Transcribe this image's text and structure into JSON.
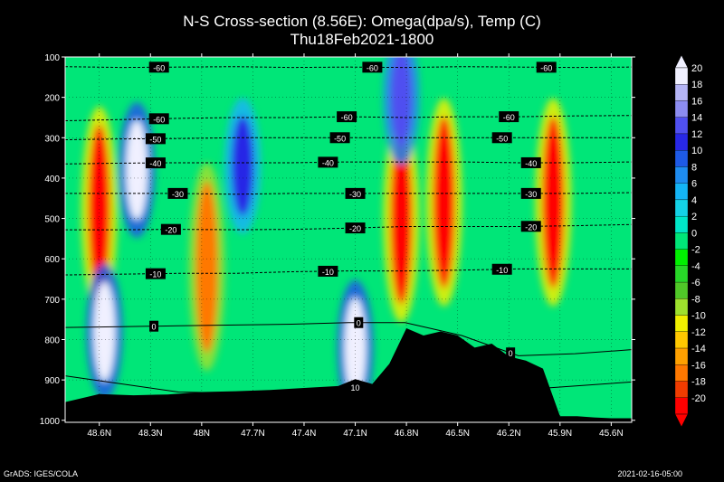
{
  "title_line1": "N-S Cross-section (8.56E): Omega(dpa/s), Temp (C)",
  "title_line2": "Thu18Feb2021-1800",
  "footer_left": "GrADS: IGES/COLA",
  "footer_right": "2021-02-16-05:00",
  "chart_data": {
    "type": "heatmap",
    "title": "N-S Cross-section (8.56E): Omega(dpa/s), Temp (C)",
    "subtitle": "Thu18Feb2021-1800",
    "xlabel": "",
    "ylabel": "",
    "x_ticks": [
      "48.6N",
      "48.3N",
      "48N",
      "47.7N",
      "47.4N",
      "47.1N",
      "46.8N",
      "46.5N",
      "46.2N",
      "45.9N",
      "45.6N"
    ],
    "x_tick_lat": [
      48.6,
      48.3,
      48.0,
      47.7,
      47.4,
      47.1,
      46.8,
      46.5,
      46.2,
      45.9,
      45.6
    ],
    "xlim": [
      48.8,
      45.48
    ],
    "y_ticks": [
      100,
      200,
      300,
      400,
      500,
      600,
      700,
      800,
      900,
      1000
    ],
    "ylim": [
      100,
      1005
    ],
    "colorbar": {
      "labels": [
        20,
        18,
        16,
        14,
        12,
        10,
        8,
        6,
        4,
        2,
        0,
        -2,
        -4,
        -6,
        -8,
        -10,
        -12,
        -14,
        -16,
        -18,
        -20
      ],
      "colors": [
        "#f0f0ff",
        "#b4b4f5",
        "#8c8cf0",
        "#5050f0",
        "#2828e6",
        "#1e5ae6",
        "#1e8cf0",
        "#14b4f5",
        "#14d2e6",
        "#00e6c8",
        "#00e678",
        "#00f000",
        "#28d728",
        "#50c828",
        "#9ee12d",
        "#f0f000",
        "#ffc800",
        "#ffa000",
        "#ff7800",
        "#f03c00",
        "#ff0000"
      ]
    },
    "temperature_contours": [
      {
        "value": -60,
        "label": "-60",
        "pressure": [
          124,
          126,
          125,
          124,
          126,
          125,
          126,
          124,
          125,
          126,
          125
        ],
        "label_lat": [
          48.25,
          47.0,
          45.98
        ]
      },
      {
        "value": -60,
        "label": "-60",
        "pressure": [
          258,
          255,
          252,
          250,
          250,
          248,
          250,
          248,
          248,
          246,
          245
        ],
        "label_lat": [
          48.25,
          47.15,
          46.2
        ]
      },
      {
        "value": -50,
        "label": "-50",
        "pressure": [
          305,
          303,
          302,
          300,
          300,
          300,
          300,
          300,
          300,
          300,
          300
        ],
        "label_lat": [
          48.27,
          47.19,
          46.24
        ]
      },
      {
        "value": -40,
        "label": "-40",
        "pressure": [
          365,
          363,
          362,
          362,
          362,
          360,
          360,
          360,
          362,
          362,
          360
        ],
        "label_lat": [
          48.27,
          47.26,
          46.07
        ]
      },
      {
        "value": -30,
        "label": "-30",
        "pressure": [
          438,
          438,
          438,
          440,
          438,
          438,
          438,
          438,
          438,
          438,
          436
        ],
        "label_lat": [
          48.14,
          47.1,
          46.07
        ]
      },
      {
        "value": -20,
        "label": "-20",
        "pressure": [
          528,
          528,
          527,
          528,
          527,
          524,
          520,
          520,
          520,
          518,
          515
        ],
        "label_lat": [
          48.18,
          47.1,
          46.07
        ]
      },
      {
        "value": -10,
        "label": "-10",
        "pressure": [
          640,
          638,
          636,
          636,
          632,
          630,
          630,
          628,
          625,
          625,
          625
        ],
        "label_lat": [
          48.27,
          47.26,
          46.24
        ]
      },
      {
        "value": 0,
        "label": "0",
        "pressure": [
          770,
          768,
          766,
          764,
          762,
          758,
          758,
          790,
          840,
          835,
          825
        ],
        "label_lat": [
          48.28,
          47.08,
          46.19
        ]
      },
      {
        "value": 10,
        "label": "10",
        "pressure": [
          890,
          930,
          935,
          905,
          925,
          905
        ],
        "label_lat": [
          47.1
        ]
      }
    ],
    "terrain_surface_pressure": {
      "lat": [
        48.8,
        48.6,
        48.4,
        48.2,
        48.0,
        47.8,
        47.6,
        47.4,
        47.2,
        47.1,
        47.0,
        46.9,
        46.8,
        46.7,
        46.6,
        46.5,
        46.4,
        46.3,
        46.2,
        46.1,
        46.0,
        45.9,
        45.8,
        45.7,
        45.6,
        45.48
      ],
      "pressure": [
        955,
        935,
        938,
        936,
        930,
        928,
        925,
        920,
        915,
        898,
        910,
        860,
        772,
        790,
        780,
        790,
        820,
        810,
        842,
        852,
        872,
        990,
        990,
        993,
        995,
        995
      ]
    },
    "omega_features": [
      {
        "lat": 48.6,
        "p_center": 480,
        "sign": "positive",
        "value": -20
      },
      {
        "lat": 48.38,
        "p_center": 380,
        "sign": "negative",
        "value": 20
      },
      {
        "lat": 48.57,
        "p_center": 780,
        "sign": "negative",
        "value": 20
      },
      {
        "lat": 47.97,
        "p_center": 620,
        "sign": "positive",
        "value": -16
      },
      {
        "lat": 47.76,
        "p_center": 370,
        "sign": "negative",
        "value": 12
      },
      {
        "lat": 46.83,
        "p_center": 500,
        "sign": "positive",
        "value": -20
      },
      {
        "lat": 46.83,
        "p_center": 200,
        "sign": "negative",
        "value": 14
      },
      {
        "lat": 46.58,
        "p_center": 460,
        "sign": "positive",
        "value": -20
      },
      {
        "lat": 45.94,
        "p_center": 460,
        "sign": "positive",
        "value": -20
      },
      {
        "lat": 47.1,
        "p_center": 820,
        "sign": "negative",
        "value": 20
      }
    ]
  }
}
